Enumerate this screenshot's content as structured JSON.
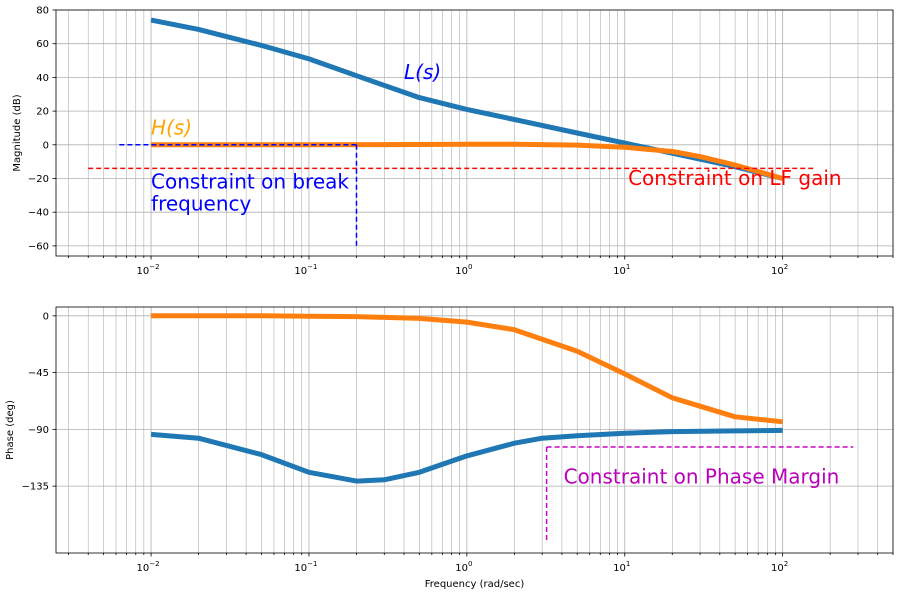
{
  "chart_data": [
    {
      "type": "line",
      "xscale": "log",
      "xlim": [
        0.0025,
        500
      ],
      "ylim": [
        -66,
        80
      ],
      "grid": true,
      "xlabel": "",
      "ylabel": "Magnitude (dB)",
      "yticks": [
        80,
        60,
        40,
        20,
        0,
        -20,
        -40,
        -60
      ],
      "xticks": [
        {
          "value": 0.01,
          "base": "10",
          "exp": "−2"
        },
        {
          "value": 0.1,
          "base": "10",
          "exp": "−1"
        },
        {
          "value": 1,
          "base": "10",
          "exp": "0"
        },
        {
          "value": 10,
          "base": "10",
          "exp": "1"
        },
        {
          "value": 100,
          "base": "10",
          "exp": "2"
        }
      ],
      "series": [
        {
          "name": "L(s)",
          "color": "#1f77b4",
          "x": [
            0.01,
            0.02,
            0.05,
            0.1,
            0.2,
            0.5,
            1,
            2,
            5,
            10,
            20,
            50,
            100
          ],
          "y": [
            74,
            68.5,
            59,
            51,
            41,
            28,
            21,
            15,
            7,
            1,
            -5,
            -13,
            -20
          ]
        },
        {
          "name": "H(s)",
          "color": "#ff7f0e",
          "x": [
            0.01,
            0.1,
            0.5,
            1,
            2,
            5,
            10,
            20,
            30,
            50,
            100
          ],
          "y": [
            0,
            0,
            0.2,
            0.3,
            0.3,
            -0.2,
            -1.5,
            -4,
            -7,
            -12,
            -20
          ]
        }
      ],
      "constraints": [
        {
          "name": "break_h",
          "color": "#0000ff",
          "x": [
            0.0063,
            0.2
          ],
          "y": [
            0,
            0
          ]
        },
        {
          "name": "break_v",
          "color": "#0000ff",
          "x": [
            0.2,
            0.2
          ],
          "y": [
            0,
            -60
          ]
        },
        {
          "name": "lf_gain",
          "color": "#ff0000",
          "x": [
            0.004,
            160
          ],
          "y": [
            -14,
            -14
          ]
        }
      ],
      "annotations": [
        {
          "id": "L",
          "text": "L(s)",
          "x": 0.4,
          "y": 39,
          "color": "#0000ff",
          "italic": true
        },
        {
          "id": "H",
          "text": "H(s)",
          "x": 0.01,
          "y": 6,
          "color": "#ffa500",
          "italic": true
        },
        {
          "id": "break1",
          "text": "Constraint on break",
          "x": 0.01,
          "y": -26,
          "color": "#0000ff"
        },
        {
          "id": "break2",
          "text": "frequency",
          "x": 0.01,
          "y": -39,
          "color": "#0000ff"
        },
        {
          "id": "lf",
          "text": "Constraint on LF gain",
          "x": 10.5,
          "y": -24,
          "color": "#ff0000"
        }
      ]
    },
    {
      "type": "line",
      "xscale": "log",
      "xlim": [
        0.0025,
        500
      ],
      "ylim": [
        -188,
        7
      ],
      "grid": true,
      "xlabel": "Frequency (rad/sec)",
      "ylabel": "Phase (deg)",
      "yticks": [
        0,
        -45,
        -90,
        -135
      ],
      "xticks": [
        {
          "value": 0.01,
          "base": "10",
          "exp": "−2"
        },
        {
          "value": 0.1,
          "base": "10",
          "exp": "−1"
        },
        {
          "value": 1,
          "base": "10",
          "exp": "0"
        },
        {
          "value": 10,
          "base": "10",
          "exp": "1"
        },
        {
          "value": 100,
          "base": "10",
          "exp": "2"
        }
      ],
      "series": [
        {
          "name": "H(s)",
          "color": "#ff7f0e",
          "x": [
            0.01,
            0.05,
            0.1,
            0.2,
            0.5,
            1,
            2,
            5,
            10,
            20,
            50,
            100
          ],
          "y": [
            0,
            0,
            -0.3,
            -0.6,
            -2,
            -5,
            -11,
            -28,
            -46,
            -65,
            -80,
            -84
          ]
        },
        {
          "name": "L(s)",
          "color": "#1f77b4",
          "x": [
            0.01,
            0.02,
            0.05,
            0.1,
            0.2,
            0.3,
            0.5,
            1,
            2,
            3,
            5,
            10,
            20,
            50,
            100
          ],
          "y": [
            -94,
            -97,
            -110,
            -124,
            -131,
            -130,
            -124,
            -111,
            -101,
            -97,
            -95,
            -93,
            -91.8,
            -91.2,
            -90.8
          ]
        }
      ],
      "constraints": [
        {
          "name": "pm_h",
          "color": "#cc00cc",
          "x": [
            3.2,
            280
          ],
          "y": [
            -104,
            -104
          ]
        },
        {
          "name": "pm_v",
          "color": "#cc00cc",
          "x": [
            3.2,
            3.2
          ],
          "y": [
            -104,
            -180
          ]
        }
      ],
      "annotations": [
        {
          "id": "pm",
          "text": "Constraint on Phase Margin",
          "x": 4.1,
          "y": -133,
          "color": "#bb00bb"
        }
      ]
    }
  ]
}
